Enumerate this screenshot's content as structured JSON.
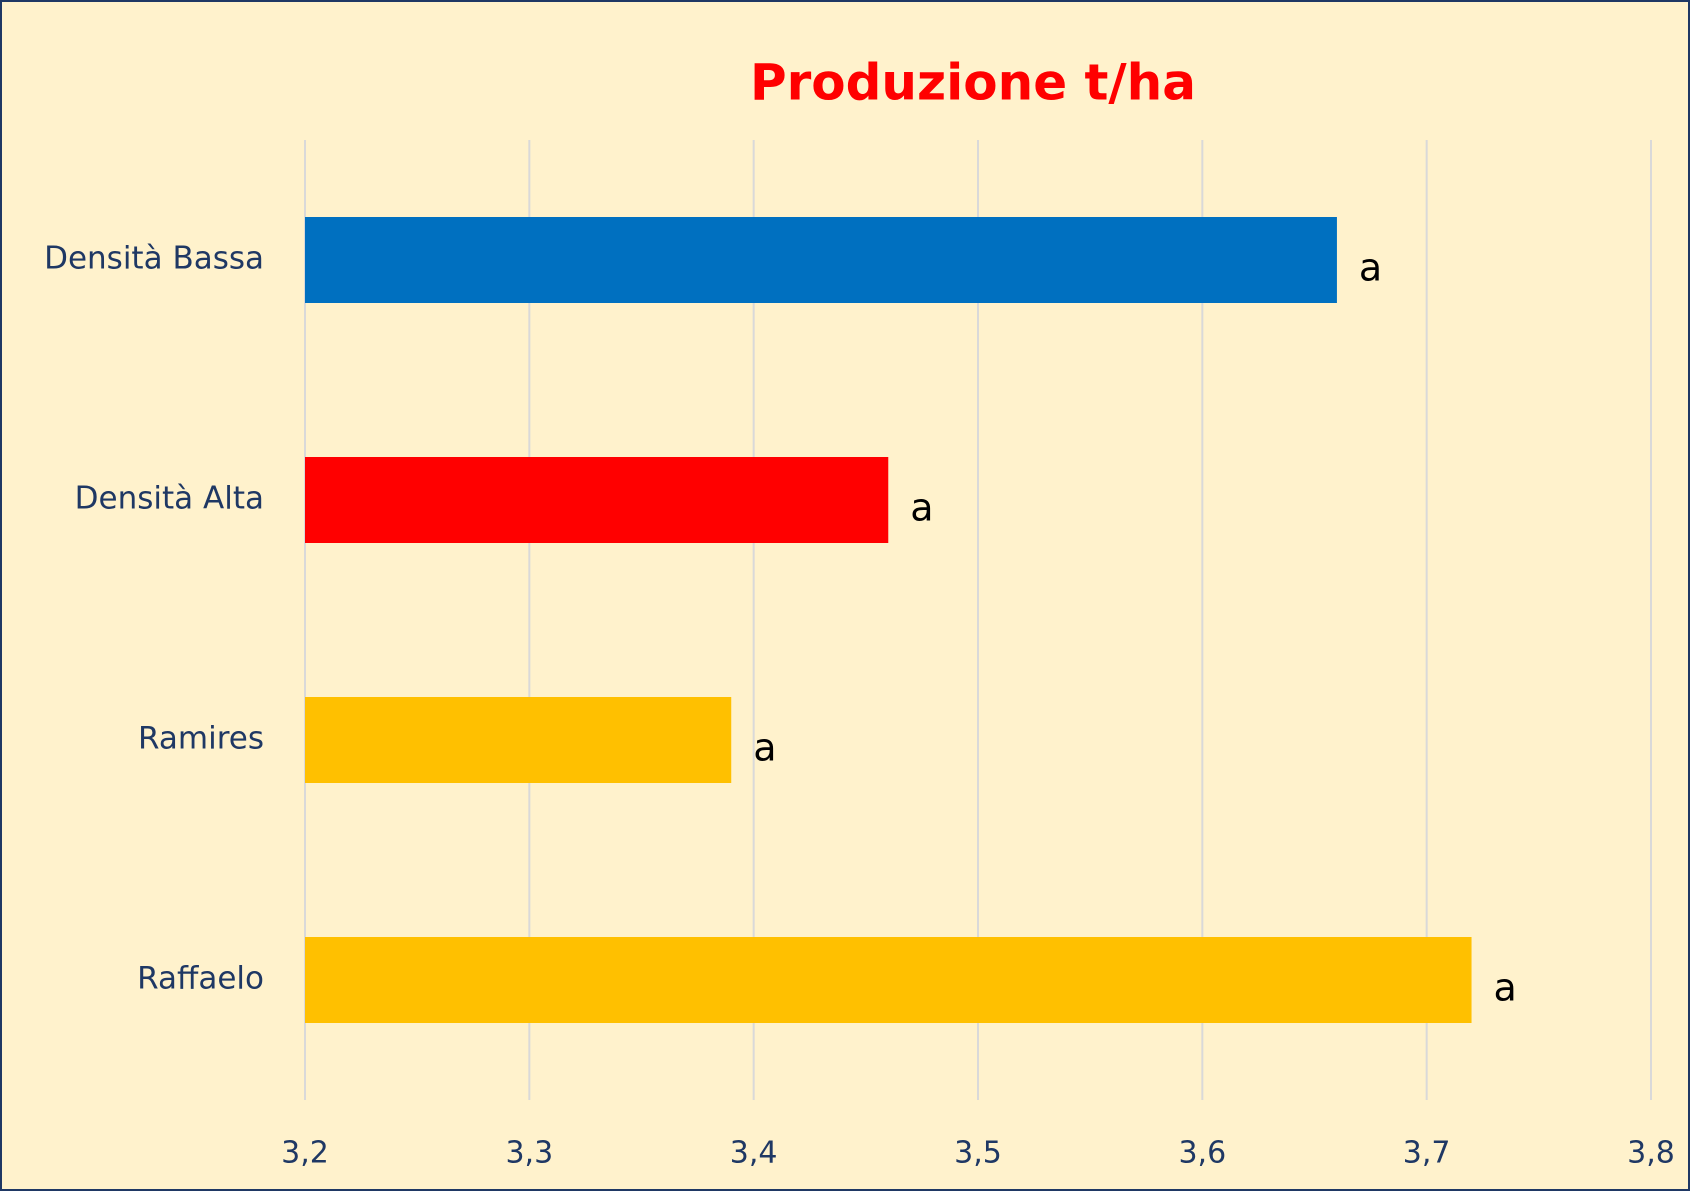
{
  "chart_data": {
    "type": "barh",
    "title": "Produzione t/ha",
    "categories": [
      "Densità Bassa",
      "Densità Alta",
      "Ramires",
      "Raffaelo"
    ],
    "values": [
      3.66,
      3.46,
      3.39,
      3.72
    ],
    "colors": [
      "#0070c0",
      "#ff0000",
      "#ffc000",
      "#ffc000"
    ],
    "annotations": [
      "a",
      "a",
      "a",
      "a"
    ],
    "xlim": [
      3.2,
      3.8
    ],
    "xticks": [
      {
        "value": 3.2,
        "label": "3,2"
      },
      {
        "value": 3.3,
        "label": "3,3"
      },
      {
        "value": 3.4,
        "label": "3,4"
      },
      {
        "value": 3.5,
        "label": "3,5"
      },
      {
        "value": 3.6,
        "label": "3,6"
      },
      {
        "value": 3.7,
        "label": "3,7"
      },
      {
        "value": 3.8,
        "label": "3,8"
      }
    ],
    "grid": true
  }
}
